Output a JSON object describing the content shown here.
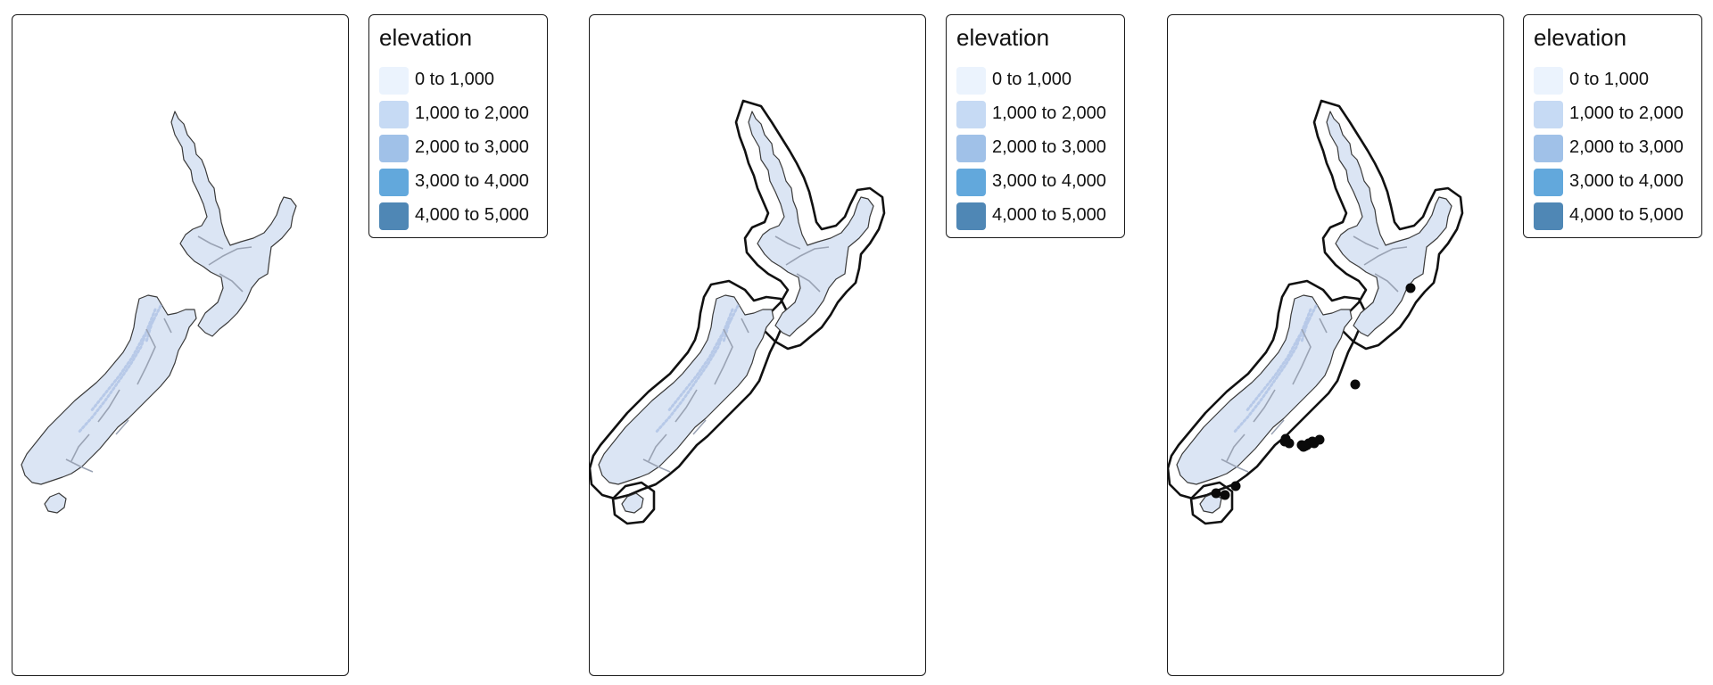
{
  "panels": [
    {
      "id": "panel-1",
      "show_buffer": false,
      "show_points": false
    },
    {
      "id": "panel-2",
      "show_buffer": true,
      "show_points": false
    },
    {
      "id": "panel-3",
      "show_buffer": true,
      "show_points": true
    }
  ],
  "legend": {
    "title": "elevation",
    "items": [
      {
        "label": "0 to 1,000",
        "color": "#ebf3fd"
      },
      {
        "label": "1,000 to 2,000",
        "color": "#c6daf4"
      },
      {
        "label": "2,000 to 3,000",
        "color": "#a0c1e8"
      },
      {
        "label": "3,000 to 4,000",
        "color": "#62a8dc"
      },
      {
        "label": "4,000 to 5,000",
        "color": "#4f87b5"
      }
    ]
  },
  "colors": {
    "land": "#dbe5f4",
    "coast": "#3a3a3a",
    "rivers": "#9aa3b4",
    "relief": "#b7c9e8",
    "buffer": "#111111",
    "points": "#0a0a0a"
  }
}
